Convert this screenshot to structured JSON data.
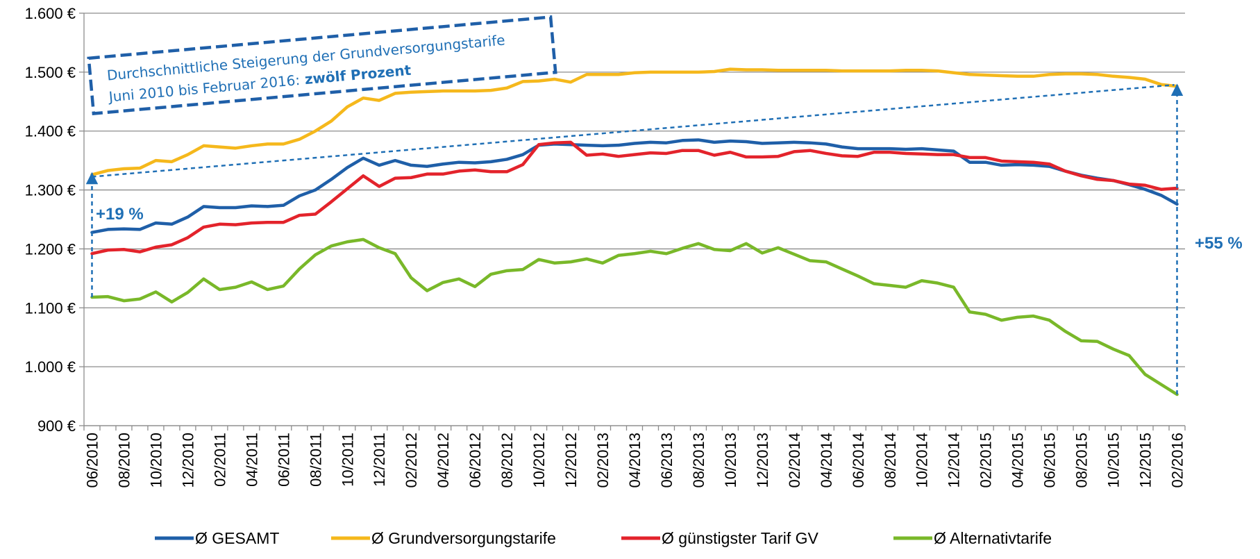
{
  "chart_data": {
    "type": "line",
    "categories": [
      "06/2010",
      null,
      "08/2010",
      null,
      "10/2010",
      null,
      "12/2010",
      null,
      "02/2011",
      null,
      "04/2011",
      null,
      "06/2011",
      null,
      "08/2011",
      null,
      "10/2011",
      null,
      "12/2011",
      null,
      "02/2012",
      null,
      "04/2012",
      null,
      "06/2012",
      null,
      "08/2012",
      null,
      "10/2012",
      null,
      "12/2012",
      null,
      "02/2013",
      null,
      "04/2013",
      null,
      "06/2013",
      null,
      "08/2013",
      null,
      "10/2013",
      null,
      "12/2013",
      null,
      "02/2014",
      null,
      "04/2014",
      null,
      "06/2014",
      null,
      "08/2014",
      null,
      "10/2014",
      null,
      "12/2014",
      null,
      "02/2015",
      null,
      "04/2015",
      null,
      "06/2015",
      null,
      "08/2015",
      null,
      "10/2015",
      null,
      "12/2015",
      null,
      "02/2016"
    ],
    "series": [
      {
        "name": "Ø GESAMT",
        "color": "#1f5fa8",
        "values": [
          1228,
          1233,
          1234,
          1233,
          1244,
          1242,
          1254,
          1272,
          1270,
          1270,
          1273,
          1272,
          1274,
          1290,
          1300,
          1318,
          1338,
          1354,
          1342,
          1350,
          1342,
          1340,
          1344,
          1347,
          1346,
          1348,
          1352,
          1360,
          1376,
          1378,
          1377,
          1376,
          1375,
          1376,
          1379,
          1381,
          1380,
          1384,
          1385,
          1381,
          1383,
          1382,
          1379,
          1380,
          1381,
          1380,
          1378,
          1373,
          1370,
          1370,
          1370,
          1369,
          1370,
          1368,
          1366,
          1347,
          1347,
          1342,
          1343,
          1342,
          1340,
          1332,
          1325,
          1320,
          1316,
          1309,
          1301,
          1291,
          1276
        ]
      },
      {
        "name": "Ø Grundversorgungstarife",
        "color": "#f5b81c",
        "values": [
          1326,
          1333,
          1336,
          1337,
          1350,
          1348,
          1360,
          1375,
          1373,
          1371,
          1375,
          1378,
          1378,
          1386,
          1400,
          1417,
          1441,
          1456,
          1452,
          1464,
          1466,
          1467,
          1468,
          1468,
          1468,
          1469,
          1473,
          1484,
          1485,
          1488,
          1483,
          1496,
          1496,
          1496,
          1499,
          1500,
          1500,
          1500,
          1500,
          1501,
          1505,
          1504,
          1504,
          1503,
          1503,
          1503,
          1503,
          1502,
          1502,
          1502,
          1502,
          1503,
          1503,
          1502,
          1499,
          1496,
          1495,
          1494,
          1493,
          1493,
          1496,
          1497,
          1497,
          1496,
          1493,
          1491,
          1488,
          1479,
          1476
        ]
      },
      {
        "name": "Ø günstigster Tarif GV",
        "color": "#e3232b",
        "values": [
          1192,
          1198,
          1199,
          1195,
          1203,
          1207,
          1219,
          1237,
          1242,
          1241,
          1244,
          1245,
          1245,
          1257,
          1259,
          1280,
          1302,
          1324,
          1306,
          1320,
          1321,
          1327,
          1327,
          1332,
          1334,
          1331,
          1331,
          1343,
          1377,
          1380,
          1381,
          1359,
          1361,
          1357,
          1360,
          1363,
          1362,
          1367,
          1367,
          1359,
          1364,
          1356,
          1356,
          1357,
          1365,
          1367,
          1362,
          1358,
          1357,
          1364,
          1364,
          1362,
          1361,
          1360,
          1360,
          1355,
          1355,
          1349,
          1348,
          1347,
          1344,
          1332,
          1324,
          1318,
          1316,
          1310,
          1308,
          1301,
          1303
        ]
      },
      {
        "name": "Ø Alternativtarife",
        "color": "#79b829",
        "values": [
          1118,
          1119,
          1112,
          1115,
          1127,
          1110,
          1126,
          1149,
          1131,
          1135,
          1144,
          1131,
          1137,
          1166,
          1190,
          1205,
          1212,
          1216,
          1202,
          1192,
          1151,
          1129,
          1143,
          1149,
          1136,
          1157,
          1163,
          1165,
          1182,
          1176,
          1178,
          1183,
          1176,
          1189,
          1192,
          1196,
          1192,
          1201,
          1209,
          1199,
          1197,
          1209,
          1193,
          1202,
          1191,
          1180,
          1178,
          1166,
          1154,
          1141,
          1138,
          1135,
          1146,
          1142,
          1135,
          1093,
          1089,
          1079,
          1084,
          1086,
          1079,
          1060,
          1044,
          1043,
          1030,
          1019,
          987,
          970,
          953
        ]
      }
    ],
    "ylim": [
      900,
      1600
    ],
    "yticks": [
      {
        "value": 900,
        "label": "900 €"
      },
      {
        "value": 1000,
        "label": "1.000 €"
      },
      {
        "value": 1100,
        "label": "1.100 €"
      },
      {
        "value": 1200,
        "label": "1.200 €"
      },
      {
        "value": 1300,
        "label": "1.300 €"
      },
      {
        "value": 1400,
        "label": "1.400 €"
      },
      {
        "value": 1500,
        "label": "1.500 €"
      },
      {
        "value": 1600,
        "label": "1.600 €"
      }
    ],
    "grid": true,
    "legend": "bottom",
    "annotations": {
      "box_line1": "Durchschnittliche Steigerung der Grundversorgungstarife",
      "box_line2": "Juni 2010 bis Februar 2016:",
      "box_bold": "zwölf Prozent",
      "left_label": "+19 %",
      "right_label": "+55 %"
    }
  }
}
